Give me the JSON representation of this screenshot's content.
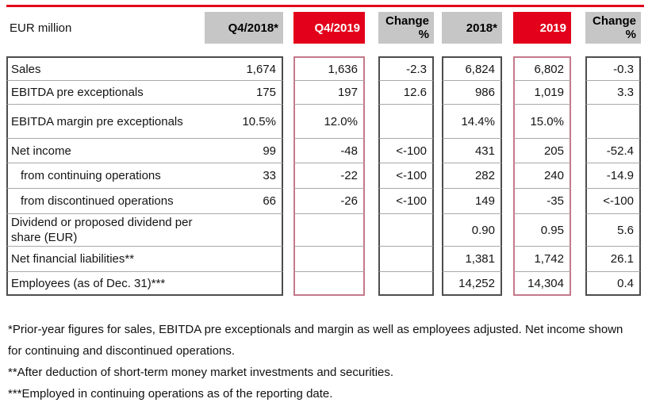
{
  "colors": {
    "brand_red": "#e2001a",
    "header_gray": "#c6c6c6",
    "box_border_dark": "#4d4d4d",
    "box_border_red_column": "#c4798a",
    "row_separator": "#a9a9a9"
  },
  "table": {
    "corner_label": "EUR million",
    "columns": [
      {
        "label": "Q4/2018*",
        "style": "gray"
      },
      {
        "label": "Q4/2019",
        "style": "red"
      },
      {
        "label": "Change %",
        "style": "gray"
      },
      {
        "label": "2018*",
        "style": "gray"
      },
      {
        "label": "2019",
        "style": "red"
      },
      {
        "label": "Change %",
        "style": "gray"
      }
    ],
    "rows": [
      {
        "label": "Sales",
        "values": [
          "1,674",
          "1,636",
          "-2.3",
          "6,824",
          "6,802",
          "-0.3"
        ]
      },
      {
        "label": "EBITDA pre exceptionals",
        "values": [
          "175",
          "197",
          "12.6",
          "986",
          "1,019",
          "3.3"
        ]
      },
      {
        "label": "EBITDA margin pre exceptionals",
        "values": [
          "10.5%",
          "12.0%",
          "",
          "14.4%",
          "15.0%",
          ""
        ]
      },
      {
        "label": "Net income",
        "values": [
          "99",
          "-48",
          "<-100",
          "431",
          "205",
          "-52.4"
        ]
      },
      {
        "label": "from continuing operations",
        "indent": true,
        "values": [
          "33",
          "-22",
          "<-100",
          "282",
          "240",
          "-14.9"
        ]
      },
      {
        "label": "from discontinued operations",
        "indent": true,
        "values": [
          "66",
          "-26",
          "<-100",
          "149",
          "-35",
          "<-100"
        ]
      },
      {
        "label": "Dividend or proposed dividend per share (EUR)",
        "values": [
          "",
          "",
          "",
          "0.90",
          "0.95",
          "5.6"
        ]
      },
      {
        "label": "Net financial liabilities**",
        "values": [
          "",
          "",
          "",
          "1,381",
          "1,742",
          "26.1"
        ]
      },
      {
        "label": "Employees (as of Dec. 31)***",
        "values": [
          "",
          "",
          "",
          "14,252",
          "14,304",
          "0.4"
        ]
      }
    ]
  },
  "footnotes": [
    "*Prior-year figures for sales, EBITDA pre exceptionals and margin as well as employees adjusted. Net income shown for continuing and discontinued operations.",
    "**After deduction of short-term money market investments and securities.",
    "***Employed in continuing operations as of the reporting date."
  ]
}
